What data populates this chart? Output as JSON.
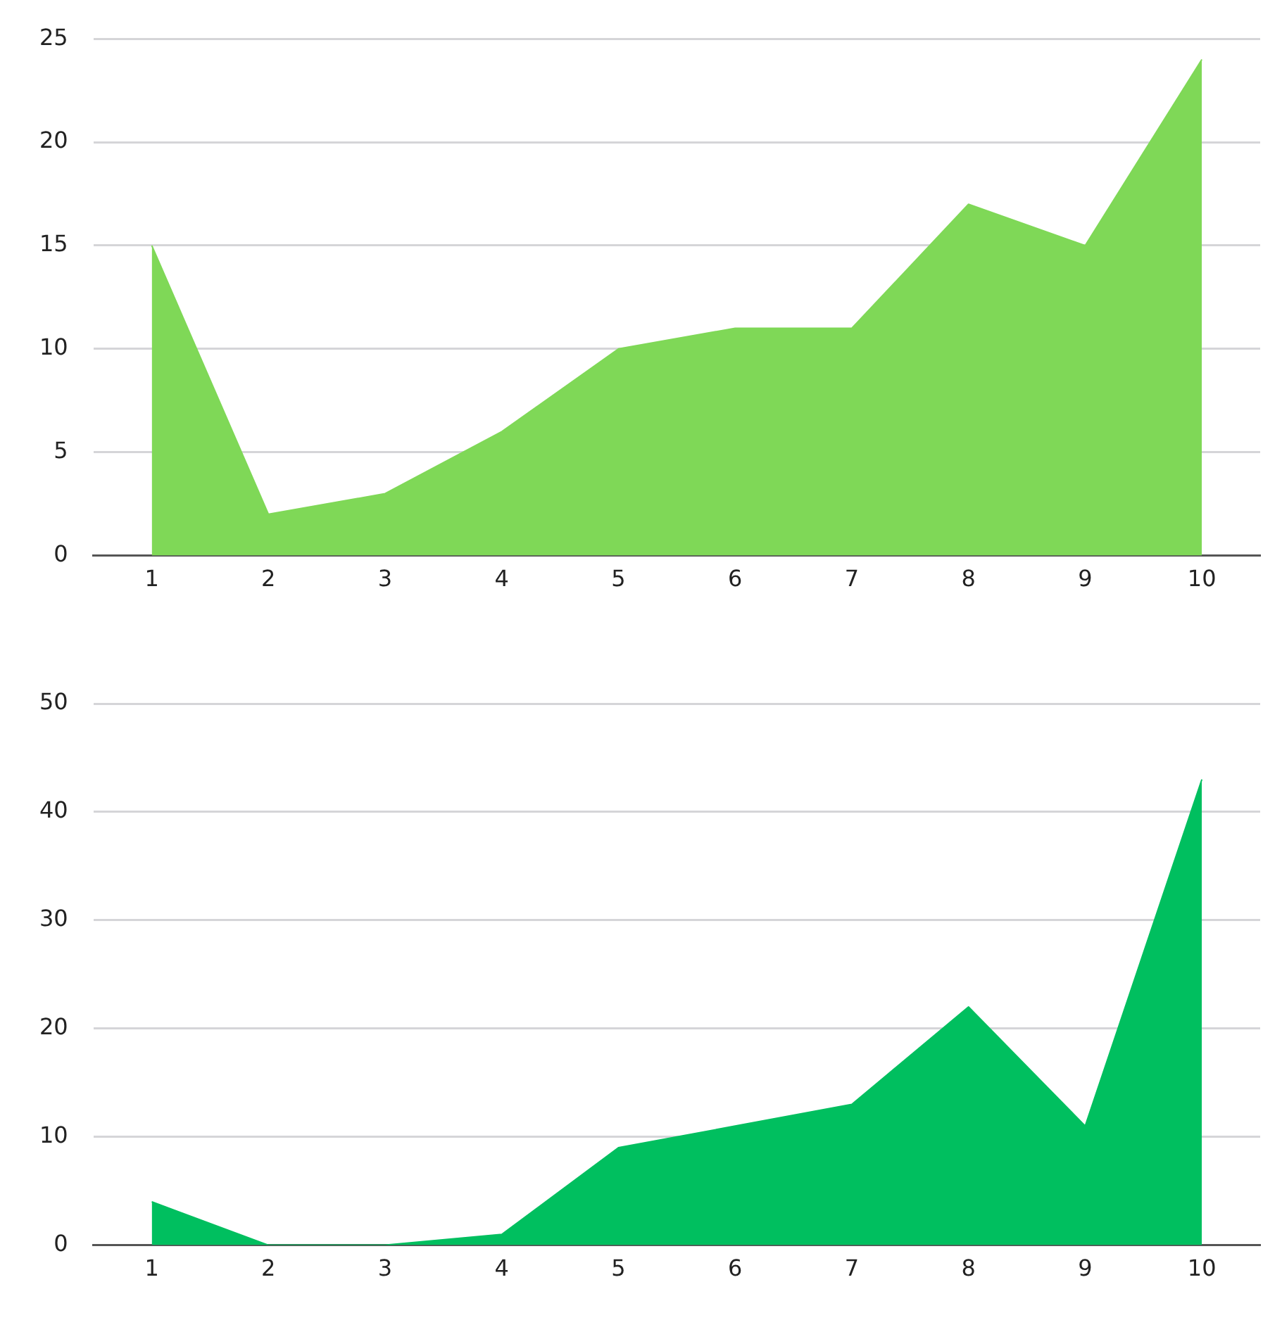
{
  "chart_data": [
    {
      "type": "area",
      "categories": [
        "1",
        "2",
        "3",
        "4",
        "5",
        "6",
        "7",
        "8",
        "9",
        "10"
      ],
      "series": [
        {
          "color": "#7fd857",
          "values": [
            15,
            2,
            3,
            6,
            10,
            11,
            11,
            17,
            15,
            24
          ]
        }
      ],
      "ylim": [
        0,
        25
      ],
      "yticks": [
        0,
        5,
        10,
        15,
        20,
        25
      ],
      "grid": "y",
      "legend": false
    },
    {
      "type": "area",
      "categories": [
        "1",
        "2",
        "3",
        "4",
        "5",
        "6",
        "7",
        "8",
        "9",
        "10"
      ],
      "series": [
        {
          "color": "#00bf5f",
          "values": [
            4,
            0,
            0,
            1,
            9,
            11,
            13,
            22,
            11,
            43
          ]
        }
      ],
      "ylim": [
        0,
        50
      ],
      "yticks": [
        0,
        10,
        20,
        30,
        40,
        50
      ],
      "grid": "y",
      "legend": false
    }
  ]
}
